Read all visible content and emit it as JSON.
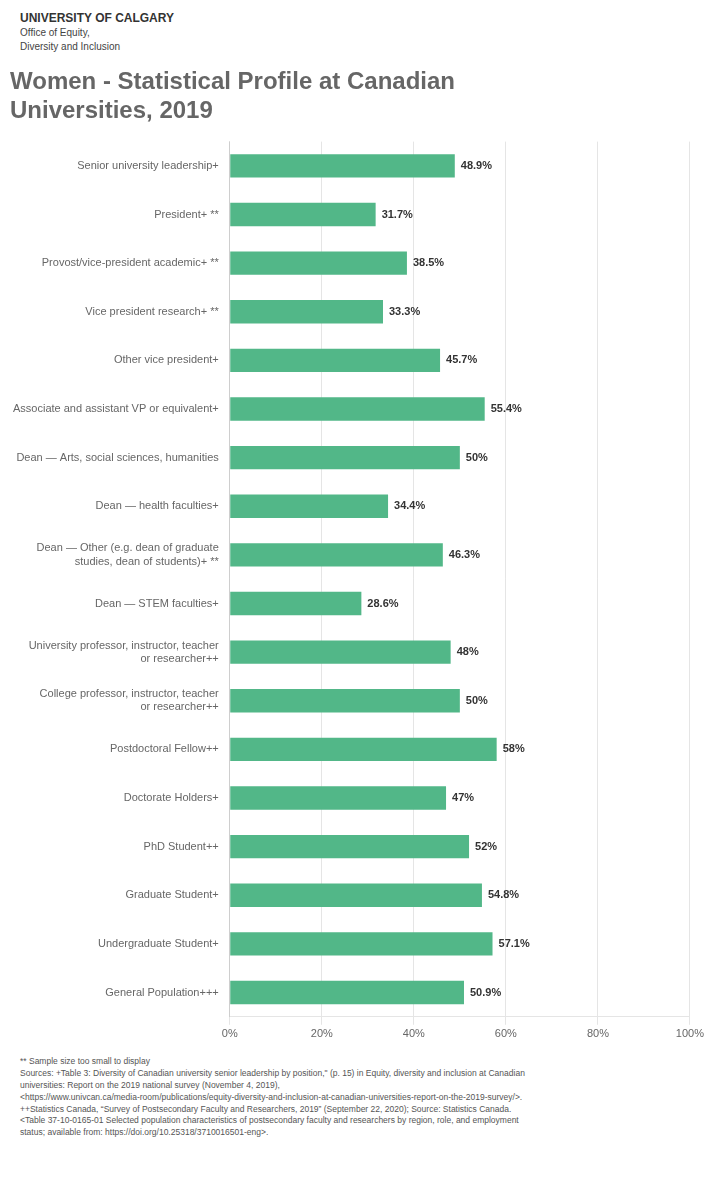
{
  "chart_data": {
    "type": "bar",
    "orientation": "horizontal",
    "title": [
      "Women - Statistical Profile at Canadian",
      "Universities, 2019"
    ],
    "annotations": [
      "UNIVERSITY OF CALGARY",
      "Office of Equity,",
      "Diversity and Inclusion",
      "** Sample size too small to display\nSources: +Table 3: Diversity of Canadian university senior leadership by position,\" (p. 15) in Equity, diversity and inclusion at Canadian\nuniversities: Report on the 2019 national survey (November 4, 2019),\n<https://www.univcan.ca/media-room/publications/equity-diversity-and-inclusion-at-canadian-universities-report-on-the-2019-survey/>.\n++Statistics Canada, “Survey of Postsecondary Faculty and Researchers, 2019” (September 22, 2020); Source: Statistics Canada.\n<Table 37-10-0165-01 Selected population characteristics of postsecondary faculty and researchers by region, role, and employment\nstatus; available from: https://doi.org/10.25318/3710016501-eng>."
    ],
    "categories": [
      "Senior university leadership+",
      "President+ **",
      "Provost/vice-president academic+ **",
      "Vice president research+ **",
      "Other vice president+",
      "Associate and assistant VP or equivalent+",
      "Dean — Arts, social sciences, humanities",
      "Dean — health faculties+",
      "Dean — Other (e.g. dean of graduate\nstudies, dean of students)+ **",
      "Dean — STEM faculties+",
      "University professor, instructor, teacher\nor researcher++",
      "College professor, instructor, teacher\nor researcher++",
      "Postdoctoral Fellow++",
      "Doctorate Holders+",
      "PhD Student++",
      "Graduate Student+",
      "Undergraduate Student+",
      "General Population+++"
    ],
    "values": [
      48.9,
      31.7,
      38.5,
      33.3,
      45.7,
      55.4,
      50.0,
      34.4,
      46.3,
      28.6,
      48.0,
      50.0,
      58.0,
      47.0,
      52.0,
      54.8,
      57.1,
      50.9
    ],
    "value_labels": [
      "48.9%",
      "31.7%",
      "38.5%",
      "33.3%",
      "45.7%",
      "55.4%",
      "50%",
      "34.4%",
      "46.3%",
      "28.6%",
      "48%",
      "50%",
      "58%",
      "47%",
      "52%",
      "54.8%",
      "57.1%",
      "50.9%"
    ],
    "data_labels": true,
    "color": "#52B788",
    "xlim": [
      0,
      100
    ],
    "xticks": [
      {
        "value": 0,
        "label": "0%"
      },
      {
        "value": 20,
        "label": "20%"
      },
      {
        "value": 40,
        "label": "40%"
      },
      {
        "value": 60,
        "label": "60%"
      },
      {
        "value": 80,
        "label": "80%"
      },
      {
        "value": 100,
        "label": "100%"
      }
    ],
    "grid": true
  }
}
